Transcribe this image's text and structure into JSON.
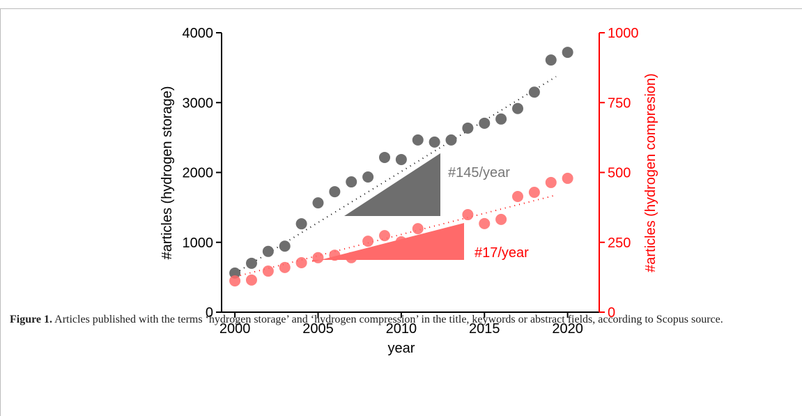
{
  "chart_data": {
    "type": "scatter",
    "x": [
      2000,
      2001,
      2002,
      2003,
      2004,
      2005,
      2006,
      2007,
      2008,
      2009,
      2010,
      2011,
      2012,
      2013,
      2014,
      2015,
      2016,
      2017,
      2018,
      2019,
      2020
    ],
    "series": [
      {
        "color": "#6e6e6e",
        "axis": "y",
        "values": [
          560,
          700,
          870,
          945,
          1265,
          1565,
          1725,
          1865,
          1935,
          2215,
          2185,
          2465,
          2435,
          2465,
          2635,
          2705,
          2765,
          2915,
          3150,
          3610,
          3720
        ]
      },
      {
        "color": "#ff6a6a",
        "axis": "y2",
        "values": [
          112,
          115,
          147,
          160,
          177,
          195,
          204,
          195,
          254,
          274,
          252,
          299,
          257,
          279,
          349,
          317,
          332,
          414,
          429,
          464,
          479
        ]
      }
    ],
    "xlabel": "year",
    "ylabel": "#articles (hydrogen storage)",
    "y2label": "#articles (hydrogen compresion)",
    "xlim": [
      1999.2,
      2021.9
    ],
    "xticks": [
      2000,
      2005,
      2010,
      2015,
      2020
    ],
    "ylim": [
      0,
      4000
    ],
    "yticks": [
      0,
      1000,
      2000,
      3000,
      4000
    ],
    "y2lim": [
      0,
      1000
    ],
    "y2ticks": [
      0,
      250,
      500,
      750,
      1000
    ],
    "annotations": [
      "#145/year",
      "#17/year"
    ],
    "caption_label": "Figure 1.",
    "caption": "Articles published with the terms ‘hydrogen storage’ and ‘hydrogen compression’ in the title, keywords or abstract fields, according to Scopus source."
  }
}
